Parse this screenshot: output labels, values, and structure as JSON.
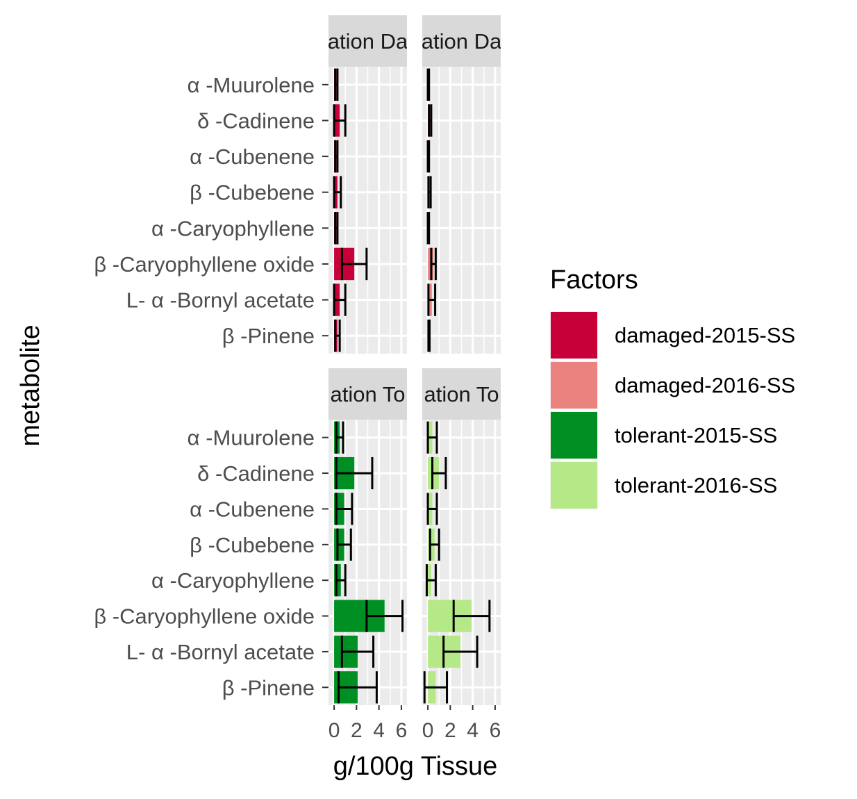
{
  "chart_data": {
    "type": "bar",
    "orientation": "horizontal",
    "xlabel": "g/100g Tissue",
    "ylabel": "metabolite",
    "xlim": [
      -0.5,
      6.5
    ],
    "x_ticks": [
      "0",
      "2",
      "4",
      "6"
    ],
    "categories": [
      "α -Muurolene",
      "δ -Cadinene",
      "α -Cubenene",
      "β -Cubebene",
      "α -Caryophyllene",
      "β -Caryophyllene oxide",
      "L- α -Bornyl acetate",
      "β -Pinene"
    ],
    "legend": {
      "title": "Factors",
      "position": "right",
      "entries": [
        {
          "label": "damaged-2015-SS",
          "color": "#C8003A"
        },
        {
          "label": "damaged-2016-SS",
          "color": "#EA837F"
        },
        {
          "label": "tolerant-2015-SS",
          "color": "#008F22"
        },
        {
          "label": "tolerant-2016-SS",
          "color": "#B5E886"
        }
      ]
    },
    "panels": [
      {
        "strip": "ation Da",
        "series": "damaged-2015-SS",
        "color": "#C8003A",
        "values": [
          0.2,
          0.5,
          0.2,
          0.3,
          0.2,
          1.8,
          0.5,
          0.3
        ],
        "errors": [
          0.1,
          0.5,
          0.1,
          0.3,
          0.1,
          1.1,
          0.5,
          0.2
        ]
      },
      {
        "strip": "ation Da",
        "series": "damaged-2016-SS",
        "color": "#EA837F",
        "values": [
          0.05,
          0.2,
          0.05,
          0.15,
          0.05,
          0.5,
          0.35,
          0.1
        ],
        "errors": [
          0.05,
          0.1,
          0.05,
          0.1,
          0.05,
          0.2,
          0.3,
          0.05
        ]
      },
      {
        "strip": "ation To",
        "series": "tolerant-2015-SS",
        "color": "#008F22",
        "values": [
          0.5,
          1.8,
          0.9,
          0.9,
          0.6,
          4.5,
          2.1,
          2.1
        ],
        "errors": [
          0.3,
          1.6,
          0.7,
          0.6,
          0.4,
          1.6,
          1.4,
          1.7
        ]
      },
      {
        "strip": "ation To",
        "series": "tolerant-2016-SS",
        "color": "#B5E886",
        "values": [
          0.4,
          1.0,
          0.4,
          0.6,
          0.3,
          3.9,
          2.9,
          0.7
        ],
        "errors": [
          0.4,
          0.6,
          0.4,
          0.4,
          0.4,
          1.6,
          1.5,
          1.0
        ]
      }
    ]
  }
}
